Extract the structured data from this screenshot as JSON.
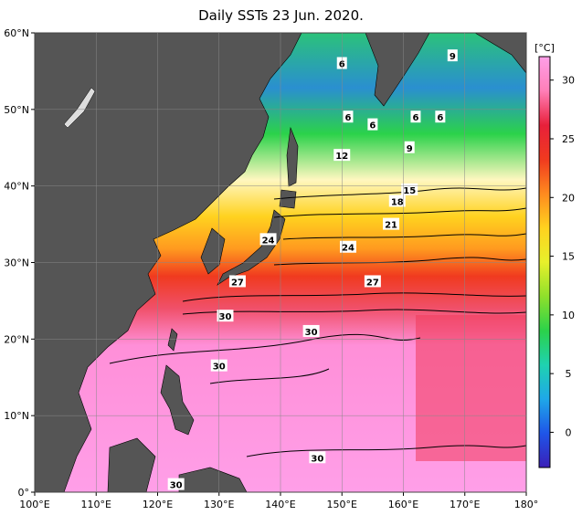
{
  "title": "Daily SSTs 23 Jun. 2020.",
  "colorbar": {
    "unit": "[°C]",
    "ticks": [
      {
        "label": "0",
        "value": 0
      },
      {
        "label": "5",
        "value": 5
      },
      {
        "label": "10",
        "value": 10
      },
      {
        "label": "15",
        "value": 15
      },
      {
        "label": "20",
        "value": 20
      },
      {
        "label": "25",
        "value": 25
      },
      {
        "label": "30",
        "value": 30
      }
    ],
    "stops": [
      "#3a1fb8",
      "#1f55e8",
      "#1fa8e8",
      "#1fd2b0",
      "#2bd24a",
      "#8fe02b",
      "#e8f02b",
      "#ffd21f",
      "#ff8a1f",
      "#f03a1f",
      "#e8203a",
      "#ff7fb8",
      "#ff9fe8"
    ]
  },
  "axes": {
    "x": [
      {
        "label": "100°E",
        "lon": 100
      },
      {
        "label": "110°E",
        "lon": 110
      },
      {
        "label": "120°E",
        "lon": 120
      },
      {
        "label": "130°E",
        "lon": 130
      },
      {
        "label": "140°E",
        "lon": 140
      },
      {
        "label": "150°E",
        "lon": 150
      },
      {
        "label": "160°E",
        "lon": 160
      },
      {
        "label": "170°E",
        "lon": 170
      },
      {
        "label": "180°",
        "lon": 180
      }
    ],
    "y": [
      {
        "label": "60°N",
        "lat": 60
      },
      {
        "label": "50°N",
        "lat": 50
      },
      {
        "label": "40°N",
        "lat": 40
      },
      {
        "label": "30°N",
        "lat": 30
      },
      {
        "label": "20°N",
        "lat": 20
      },
      {
        "label": "10°N",
        "lat": 10
      },
      {
        "label": "0°",
        "lat": 0
      }
    ]
  },
  "contour_labels": [
    {
      "text": "6",
      "lon": 150,
      "lat": 56
    },
    {
      "text": "9",
      "lon": 168,
      "lat": 57
    },
    {
      "text": "6",
      "lon": 151,
      "lat": 49
    },
    {
      "text": "6",
      "lon": 155,
      "lat": 48
    },
    {
      "text": "6",
      "lon": 162,
      "lat": 49
    },
    {
      "text": "6",
      "lon": 166,
      "lat": 49
    },
    {
      "text": "9",
      "lon": 161,
      "lat": 45
    },
    {
      "text": "12",
      "lon": 150,
      "lat": 44
    },
    {
      "text": "15",
      "lon": 161,
      "lat": 39.5
    },
    {
      "text": "18",
      "lon": 159,
      "lat": 38
    },
    {
      "text": "21",
      "lon": 158,
      "lat": 35
    },
    {
      "text": "24",
      "lon": 138,
      "lat": 33
    },
    {
      "text": "24",
      "lon": 151,
      "lat": 32
    },
    {
      "text": "27",
      "lon": 133,
      "lat": 27.5
    },
    {
      "text": "27",
      "lon": 155,
      "lat": 27.5
    },
    {
      "text": "30",
      "lon": 131,
      "lat": 23
    },
    {
      "text": "30",
      "lon": 145,
      "lat": 21
    },
    {
      "text": "30",
      "lon": 130,
      "lat": 16.5
    },
    {
      "text": "30",
      "lon": 146,
      "lat": 4.5
    },
    {
      "text": "30",
      "lon": 123,
      "lat": 1
    }
  ]
}
